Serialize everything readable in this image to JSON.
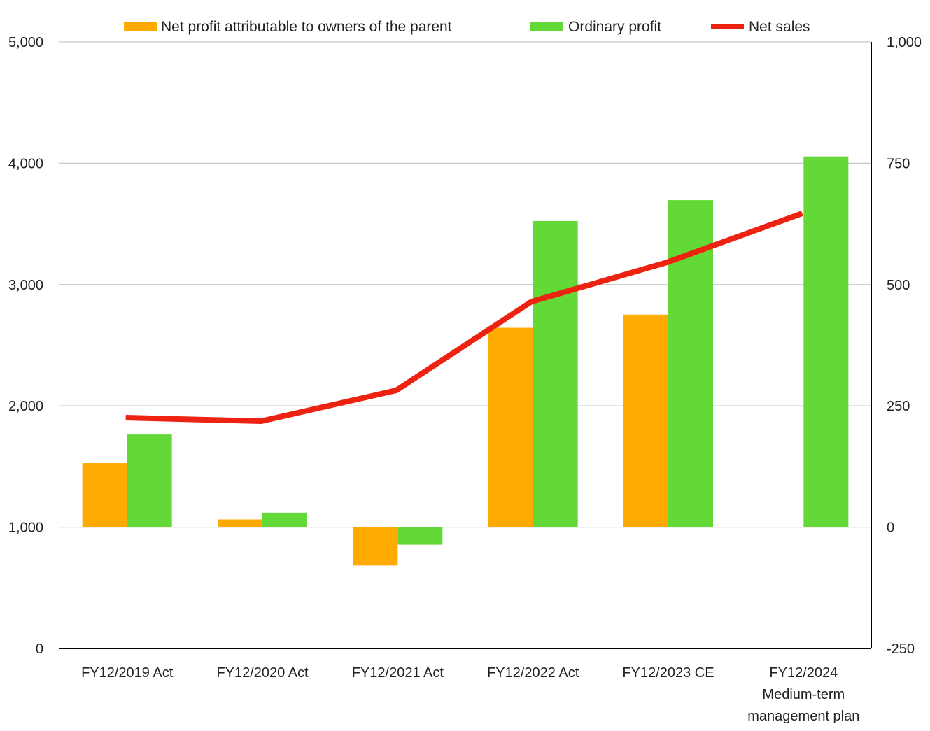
{
  "chart_data": {
    "type": "bar+line",
    "title": "",
    "categories": [
      [
        "FY12/2019 Act"
      ],
      [
        "FY12/2020 Act"
      ],
      [
        "FY12/2021 Act"
      ],
      [
        "FY12/2022 Act"
      ],
      [
        "FY12/2023 CE"
      ],
      [
        "FY12/2024",
        "Medium-term",
        "management plan"
      ]
    ],
    "left_axis": {
      "ylim": [
        0,
        5000
      ],
      "ticks": [
        0,
        1000,
        2000,
        3000,
        4000,
        5000
      ],
      "tick_labels": [
        "0",
        "1,000",
        "2,000",
        "3,000",
        "4,000",
        "5,000"
      ]
    },
    "right_axis": {
      "ylim": [
        -250,
        1000
      ],
      "ticks": [
        -250,
        0,
        250,
        500,
        750,
        1000
      ],
      "tick_labels": [
        "-250",
        "0",
        "250",
        "500",
        "750",
        "1,000"
      ]
    },
    "grid": true,
    "legend_position": "top",
    "series": [
      {
        "name": "Net profit attributable to owners of the parent",
        "type": "bar",
        "axis": "right",
        "color": "#FFAA00",
        "values": [
          132,
          16,
          -79,
          411,
          438,
          null
        ]
      },
      {
        "name": "Ordinary profit",
        "type": "bar",
        "axis": "right",
        "color": "#62D936",
        "values": [
          191,
          30,
          -36,
          631,
          674,
          764
        ]
      },
      {
        "name": "Net sales",
        "type": "line",
        "axis": "left",
        "color": "#EE2211",
        "values": [
          1903,
          1874,
          2128,
          2860,
          3183,
          3587
        ]
      }
    ]
  }
}
